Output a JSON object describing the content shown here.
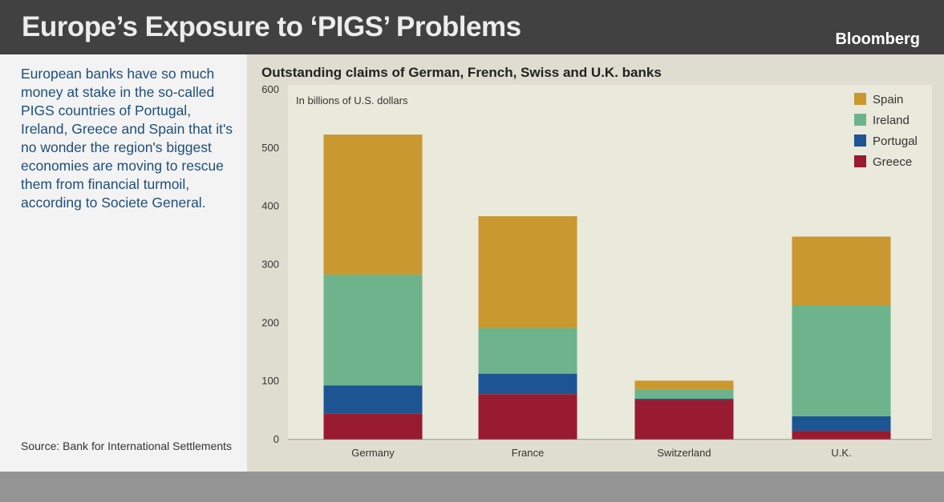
{
  "header": {
    "title": "Europe’s Exposure to ‘PIGS’ Problems",
    "brand": "Bloomberg"
  },
  "sidebar": {
    "description": "European banks have so much money at stake in the so-called PIGS countries of Portugal, Ireland, Greece and Spain that it's no wonder the region's biggest economies are moving to rescue them from financial turmoil, according to Societe General.",
    "source": "Source: Bank for International Settlements"
  },
  "colors": {
    "Spain": "#c9982f",
    "Ireland": "#6db48c",
    "Portugal": "#1d5592",
    "Greece": "#991b30",
    "plot_background": "#e9e9dc",
    "panel_background": "#dfddcf"
  },
  "chart_data": {
    "type": "bar",
    "stacked": true,
    "title": "Outstanding claims of German, French, Swiss and U.K. banks",
    "units_label": "In billions of U.S. dollars",
    "categories": [
      "Germany",
      "France",
      "Switzerland",
      "U.K."
    ],
    "series": [
      {
        "name": "Greece",
        "values": [
          45,
          78,
          68,
          15
        ]
      },
      {
        "name": "Portugal",
        "values": [
          48,
          35,
          2,
          25
        ]
      },
      {
        "name": "Ireland",
        "values": [
          190,
          78,
          16,
          190
        ]
      },
      {
        "name": "Spain",
        "values": [
          240,
          192,
          15,
          118
        ]
      }
    ],
    "legend_order": [
      "Spain",
      "Ireland",
      "Portugal",
      "Greece"
    ],
    "legend_position": "top-right",
    "ylim": [
      0,
      600
    ],
    "yticks": [
      0,
      100,
      200,
      300,
      400,
      500,
      600
    ],
    "grid": false
  }
}
